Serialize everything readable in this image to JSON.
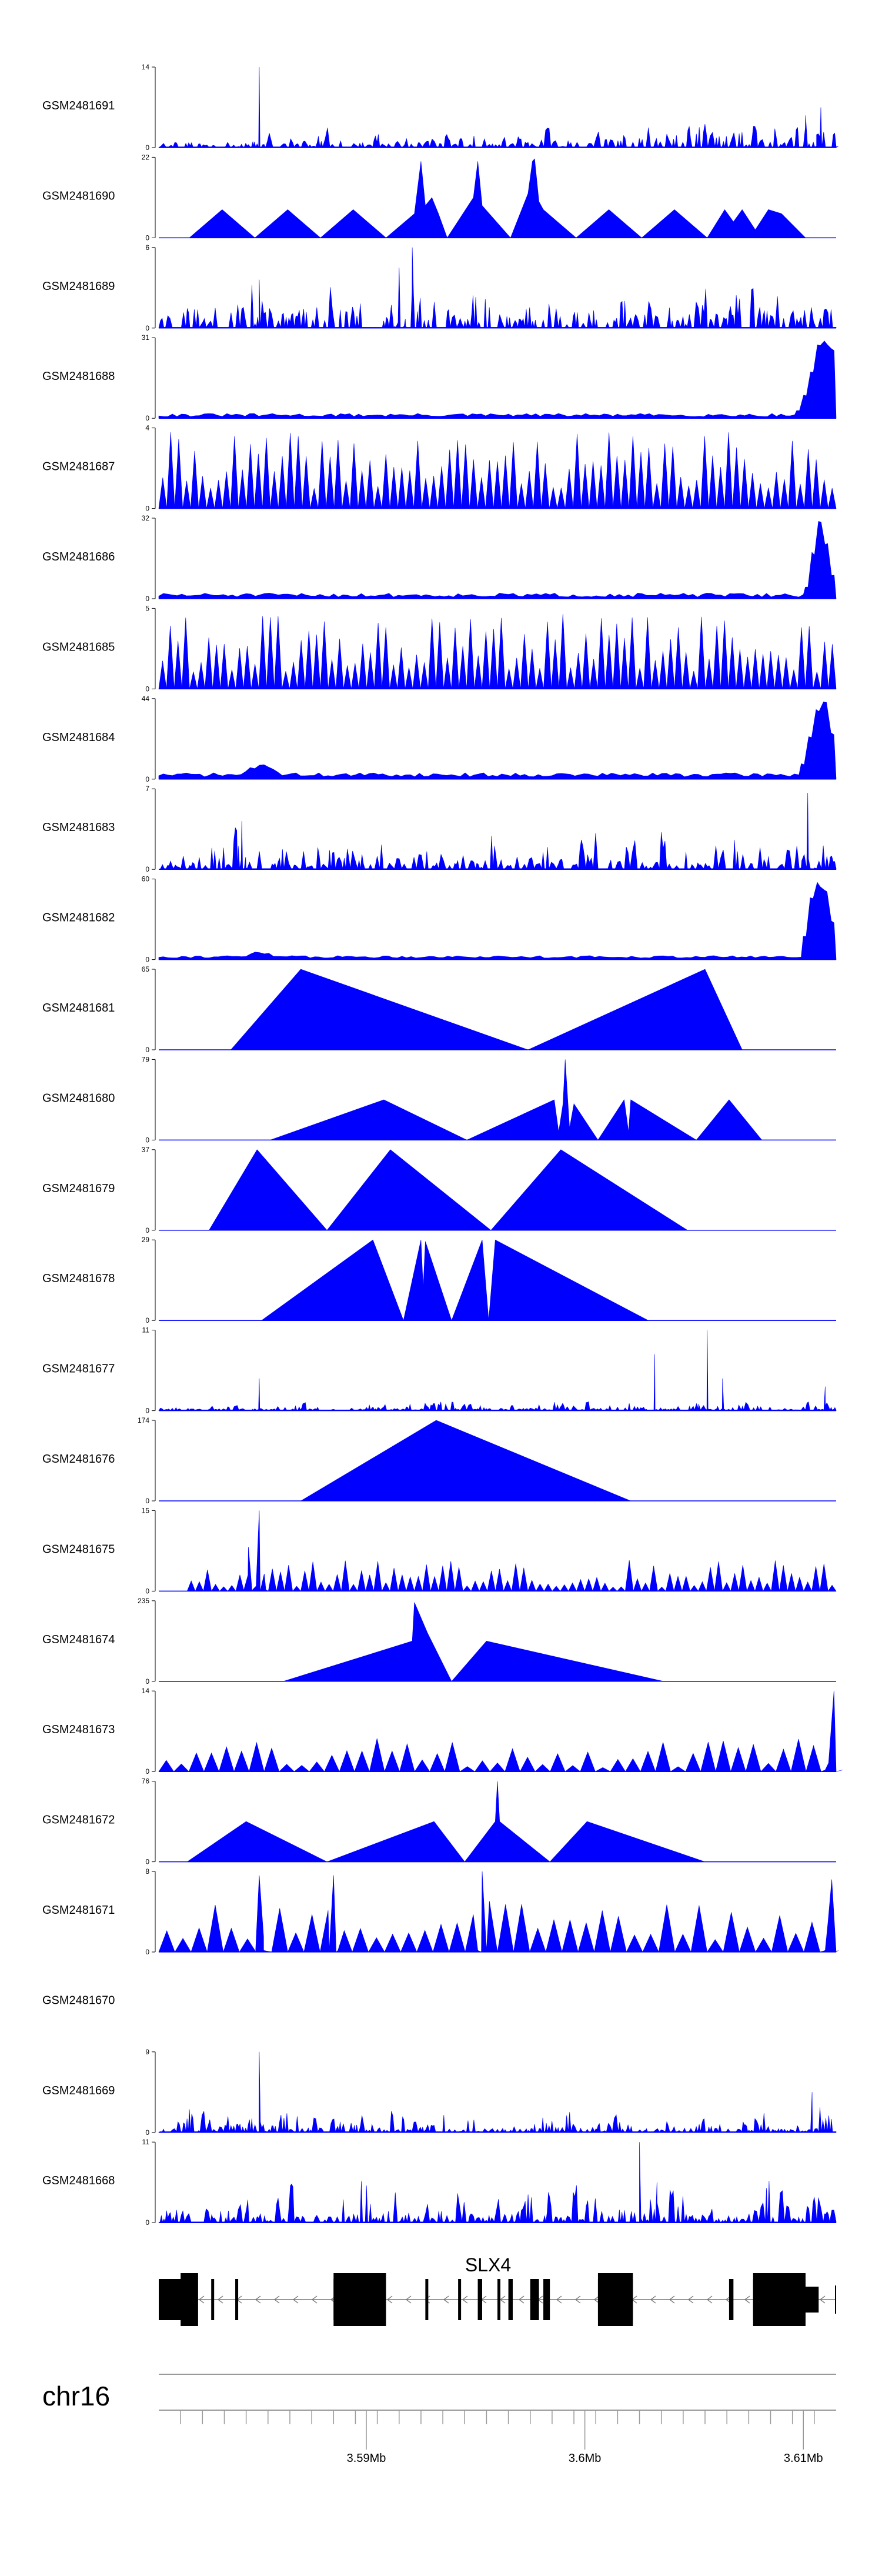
{
  "chart_data": {
    "type": "area",
    "color": "#0000ff",
    "x_range": [
      3.5805,
      3.6115
    ],
    "x_unit": "Mb",
    "chromosome": "chr16",
    "gene": {
      "name": "SLX4",
      "start": 3.5805,
      "end": 3.6115,
      "strand": "-",
      "exons": [
        [
          3.5805,
          3.58185
        ],
        [
          3.58185,
          3.5822
        ],
        [
          3.5829,
          3.58302
        ],
        [
          3.584,
          3.5841
        ],
        [
          3.5885,
          3.5909
        ],
        [
          3.5927,
          3.5928
        ],
        [
          3.5942,
          3.5943
        ],
        [
          3.5951,
          3.5953
        ],
        [
          3.596,
          3.5961
        ],
        [
          3.5965,
          3.5967
        ],
        [
          3.5975,
          3.5979
        ],
        [
          3.5981,
          3.5984
        ],
        [
          3.6006,
          3.6012
        ],
        [
          3.6012,
          3.6022
        ],
        [
          3.6066,
          3.6068
        ],
        [
          3.6077,
          3.6101
        ]
      ],
      "thick_exons": [
        [
          3.5815,
          3.5823
        ],
        [
          3.5885,
          3.5909
        ],
        [
          3.6006,
          3.6022
        ],
        [
          3.6077,
          3.6101
        ]
      ]
    },
    "axis": {
      "ticks": [
        3.5815,
        3.5825,
        3.5835,
        3.5845,
        3.5855,
        3.5865,
        3.5875,
        3.5885,
        3.5895,
        3.5905,
        3.5915,
        3.5925,
        3.5935,
        3.5945,
        3.5955,
        3.5965,
        3.5975,
        3.5985,
        3.5995,
        3.6005,
        3.6015,
        3.6025,
        3.6035,
        3.6045,
        3.6055,
        3.6065,
        3.6075,
        3.6085,
        3.6095,
        3.6105
      ],
      "labeled_ticks": [
        {
          "value": 3.59,
          "label": "3.59Mb"
        },
        {
          "value": 3.6,
          "label": "3.6Mb"
        },
        {
          "value": 3.61,
          "label": "3.61Mb"
        }
      ]
    },
    "tracks": [
      {
        "id": "GSM2481691",
        "name": "GSM2481691",
        "ymin": 0,
        "ymax": 14,
        "y_labels": [
          "0",
          "14"
        ],
        "pattern": "dense",
        "n": 95,
        "seed": 11,
        "base": 0.05,
        "amp": 0.22,
        "spikes": [
          [
            3.5851,
            1.0,
            0.00025
          ],
          [
            3.6108,
            0.5,
            0.0008
          ],
          [
            3.6101,
            0.4,
            0.0005
          ]
        ],
        "rise": {
          "start": 3.596,
          "gain": 0.2
        }
      },
      {
        "id": "GSM2481690",
        "name": "GSM2481690",
        "ymin": 0,
        "ymax": 22,
        "y_labels": [
          "0",
          "22"
        ],
        "pattern": "triangles",
        "points": [
          [
            3.5819,
            0
          ],
          [
            3.5834,
            0.35
          ],
          [
            3.5849,
            0
          ],
          [
            3.5864,
            0.35
          ],
          [
            3.5879,
            0
          ],
          [
            3.5894,
            0.35
          ],
          [
            3.5909,
            0
          ],
          [
            3.5922,
            0.3
          ],
          [
            3.5925,
            0.95
          ],
          [
            3.5927,
            0.4
          ],
          [
            3.593,
            0.5
          ],
          [
            3.5933,
            0.3
          ],
          [
            3.5937,
            0
          ],
          [
            3.5949,
            0.5
          ],
          [
            3.5951,
            0.95
          ],
          [
            3.5953,
            0.4
          ],
          [
            3.5966,
            0
          ],
          [
            3.5974,
            0.55
          ],
          [
            3.5976,
            0.95
          ],
          [
            3.5977,
            0.98
          ],
          [
            3.5979,
            0.45
          ],
          [
            3.5981,
            0.35
          ],
          [
            3.5996,
            0
          ],
          [
            3.6011,
            0.35
          ],
          [
            3.6026,
            0
          ],
          [
            3.6041,
            0.35
          ],
          [
            3.6056,
            0
          ],
          [
            3.6064,
            0.35
          ],
          [
            3.6068,
            0.2
          ],
          [
            3.6072,
            0.35
          ],
          [
            3.6078,
            0.1
          ],
          [
            3.6084,
            0.35
          ],
          [
            3.609,
            0.3
          ],
          [
            3.6101,
            0
          ]
        ]
      },
      {
        "id": "GSM2481689",
        "name": "GSM2481689",
        "ymin": 0,
        "ymax": 6,
        "y_labels": [
          "0",
          "6"
        ],
        "pattern": "dense",
        "n": 100,
        "seed": 23,
        "base": 0.12,
        "amp": 0.45,
        "spikes": [
          [
            3.5921,
            1.0,
            0.0003
          ],
          [
            3.5915,
            0.75,
            0.0002
          ],
          [
            3.5851,
            0.6,
            0.0004
          ]
        ],
        "rise": null
      },
      {
        "id": "GSM2481688",
        "name": "GSM2481688",
        "ymin": 0,
        "ymax": 31,
        "y_labels": [
          "0",
          "31"
        ],
        "pattern": "low_with_peak",
        "seed": 31,
        "base": 0.02,
        "amp": 0.04,
        "peak": {
          "start": 3.6096,
          "end": 3.6115,
          "heights": [
            0.1,
            0.3,
            0.6,
            0.95,
            1.0,
            0.9
          ]
        }
      },
      {
        "id": "GSM2481687",
        "name": "GSM2481687",
        "ymin": 0,
        "ymax": 4,
        "y_labels": [
          "0",
          "4"
        ],
        "pattern": "spiky",
        "n": 85,
        "seed": 41,
        "base": 0.25,
        "amp": 0.7
      },
      {
        "id": "GSM2481686",
        "name": "GSM2481686",
        "ymin": 0,
        "ymax": 32,
        "y_labels": [
          "0",
          "32"
        ],
        "pattern": "low_with_peak",
        "seed": 51,
        "base": 0.02,
        "amp": 0.05,
        "peak": {
          "start": 3.61,
          "end": 3.6115,
          "heights": [
            0.15,
            0.6,
            1.0,
            0.7,
            0.3
          ]
        }
      },
      {
        "id": "GSM2481685",
        "name": "GSM2481685",
        "ymin": 0,
        "ymax": 5,
        "y_labels": [
          "0",
          "5"
        ],
        "pattern": "spiky",
        "n": 88,
        "seed": 61,
        "base": 0.2,
        "amp": 0.75
      },
      {
        "id": "GSM2481684",
        "name": "GSM2481684",
        "ymin": 0,
        "ymax": 44,
        "y_labels": [
          "0",
          "44"
        ],
        "pattern": "low_with_peak",
        "seed": 71,
        "base": 0.03,
        "amp": 0.05,
        "bump": {
          "start": 3.5843,
          "end": 3.5862,
          "height": 0.15
        },
        "peak": {
          "start": 3.6098,
          "end": 3.6115,
          "heights": [
            0.2,
            0.55,
            0.9,
            1.0,
            0.6
          ]
        }
      },
      {
        "id": "GSM2481683",
        "name": "GSM2481683",
        "ymin": 0,
        "ymax": 7,
        "y_labels": [
          "0",
          "7"
        ],
        "pattern": "dense",
        "n": 92,
        "seed": 81,
        "base": 0.08,
        "amp": 0.5,
        "spikes": [
          [
            3.6102,
            0.95,
            0.0003
          ],
          [
            3.5843,
            0.6,
            0.0002
          ]
        ],
        "rise": null
      },
      {
        "id": "GSM2481682",
        "name": "GSM2481682",
        "ymin": 0,
        "ymax": 60,
        "y_labels": [
          "0",
          "60"
        ],
        "pattern": "low_with_peak",
        "seed": 91,
        "base": 0.02,
        "amp": 0.03,
        "bump": {
          "start": 3.5844,
          "end": 3.586,
          "height": 0.07
        },
        "peak": {
          "start": 3.6099,
          "end": 3.6115,
          "heights": [
            0.3,
            0.8,
            1.0,
            0.9,
            0.5
          ]
        }
      },
      {
        "id": "GSM2481681",
        "name": "GSM2481681",
        "ymin": 0,
        "ymax": 65,
        "y_labels": [
          "0",
          "65"
        ],
        "pattern": "triangles",
        "points": [
          [
            3.5838,
            0
          ],
          [
            3.587,
            1.0
          ],
          [
            3.5974,
            0
          ],
          [
            3.6055,
            1.0
          ],
          [
            3.6072,
            0
          ]
        ]
      },
      {
        "id": "GSM2481680",
        "name": "GSM2481680",
        "ymin": 0,
        "ymax": 79,
        "y_labels": [
          "0",
          "79"
        ],
        "pattern": "triangles",
        "points": [
          [
            3.5856,
            0
          ],
          [
            3.5908,
            0.5
          ],
          [
            3.5946,
            0
          ],
          [
            3.5986,
            0.5
          ],
          [
            3.5988,
            0.1
          ],
          [
            3.599,
            0.45
          ],
          [
            3.5991,
            1.0
          ],
          [
            3.5993,
            0.15
          ],
          [
            3.5995,
            0.45
          ],
          [
            3.6006,
            0
          ],
          [
            3.6018,
            0.5
          ],
          [
            3.602,
            0.1
          ],
          [
            3.6021,
            0.5
          ],
          [
            3.6051,
            0
          ],
          [
            3.6066,
            0.5
          ],
          [
            3.6081,
            0
          ]
        ]
      },
      {
        "id": "GSM2481679",
        "name": "GSM2481679",
        "ymin": 0,
        "ymax": 37,
        "y_labels": [
          "0",
          "37"
        ],
        "pattern": "triangles",
        "points": [
          [
            3.5828,
            0
          ],
          [
            3.585,
            1.0
          ],
          [
            3.5882,
            0
          ],
          [
            3.5911,
            1.0
          ],
          [
            3.5957,
            0
          ],
          [
            3.5989,
            1.0
          ],
          [
            3.6047,
            0
          ]
        ]
      },
      {
        "id": "GSM2481678",
        "name": "GSM2481678",
        "ymin": 0,
        "ymax": 29,
        "y_labels": [
          "0",
          "29"
        ],
        "pattern": "triangles",
        "points": [
          [
            3.5852,
            0
          ],
          [
            3.5903,
            1.0
          ],
          [
            3.5917,
            0
          ],
          [
            3.5925,
            1.0
          ],
          [
            3.5926,
            0.4
          ],
          [
            3.5927,
            0.98
          ],
          [
            3.5939,
            0
          ],
          [
            3.5953,
            1.0
          ],
          [
            3.5956,
            0
          ],
          [
            3.5959,
            1.0
          ],
          [
            3.6029,
            0
          ]
        ]
      },
      {
        "id": "GSM2481677",
        "name": "GSM2481677",
        "ymin": 0,
        "ymax": 11,
        "y_labels": [
          "0",
          "11"
        ],
        "pattern": "dense",
        "n": 110,
        "seed": 111,
        "base": 0.03,
        "amp": 0.12,
        "spikes": [
          [
            3.6056,
            1.0,
            0.0004
          ],
          [
            3.6032,
            0.7,
            0.0004
          ],
          [
            3.6063,
            0.4,
            0.0003
          ],
          [
            3.5851,
            0.4,
            0.0003
          ],
          [
            3.611,
            0.3,
            0.0003
          ]
        ],
        "rise": null
      },
      {
        "id": "GSM2481676",
        "name": "GSM2481676",
        "ymin": 0,
        "ymax": 174,
        "y_labels": [
          "0",
          "174"
        ],
        "pattern": "triangles",
        "points": [
          [
            3.587,
            0
          ],
          [
            3.5932,
            1.0
          ],
          [
            3.6021,
            0
          ]
        ]
      },
      {
        "id": "GSM2481675",
        "name": "GSM2481675",
        "ymin": 0,
        "ymax": 15,
        "y_labels": [
          "0",
          "15"
        ],
        "pattern": "spiky",
        "n": 80,
        "seed": 121,
        "base": 0.05,
        "amp": 0.35,
        "start": 3.5818,
        "spikes": [
          [
            3.5851,
            1.0,
            0.0003
          ],
          [
            3.5846,
            0.55,
            0.0002
          ]
        ]
      },
      {
        "id": "GSM2481674",
        "name": "GSM2481674",
        "ymin": 0,
        "ymax": 235,
        "y_labels": [
          "0",
          "235"
        ],
        "pattern": "triangles",
        "points": [
          [
            3.5862,
            0
          ],
          [
            3.5921,
            0.5
          ],
          [
            3.5922,
            0.98
          ],
          [
            3.5928,
            0.6
          ],
          [
            3.5939,
            0
          ],
          [
            3.5955,
            0.5
          ],
          [
            3.6036,
            0
          ]
        ]
      },
      {
        "id": "GSM2481673",
        "name": "GSM2481673",
        "ymin": 0,
        "ymax": 14,
        "y_labels": [
          "0",
          "14"
        ],
        "pattern": "spiky",
        "n": 45,
        "seed": 131,
        "base": 0.05,
        "amp": 0.4,
        "spikes": [
          [
            3.6114,
            1.0,
            0.0004
          ]
        ]
      },
      {
        "id": "GSM2481672",
        "name": "GSM2481672",
        "ymin": 0,
        "ymax": 76,
        "y_labels": [
          "0",
          "76"
        ],
        "pattern": "triangles",
        "points": [
          [
            3.5818,
            0
          ],
          [
            3.5845,
            0.5
          ],
          [
            3.5882,
            0
          ],
          [
            3.5931,
            0.5
          ],
          [
            3.5945,
            0
          ],
          [
            3.5959,
            0.5
          ],
          [
            3.596,
            1.0
          ],
          [
            3.5961,
            0.5
          ],
          [
            3.5984,
            0
          ],
          [
            3.6001,
            0.5
          ],
          [
            3.6055,
            0
          ]
        ]
      },
      {
        "id": "GSM2481671",
        "name": "GSM2481671",
        "ymin": 0,
        "ymax": 8,
        "y_labels": [
          "0",
          "8"
        ],
        "pattern": "spiky",
        "n": 42,
        "seed": 141,
        "base": 0.15,
        "amp": 0.5,
        "spikes": [
          [
            3.5851,
            0.95,
            0.0002
          ],
          [
            3.5885,
            0.95,
            0.0002
          ],
          [
            3.5953,
            1.0,
            0.0002
          ],
          [
            3.6113,
            0.9,
            0.0003
          ]
        ]
      },
      {
        "id": "GSM2481670",
        "name": "GSM2481670",
        "ymin": null,
        "ymax": null,
        "y_labels": [],
        "pattern": "empty"
      },
      {
        "id": "GSM2481669",
        "name": "GSM2481669",
        "ymin": 0,
        "ymax": 9,
        "y_labels": [
          "0",
          "9"
        ],
        "pattern": "dense",
        "n": 115,
        "seed": 151,
        "base": 0.05,
        "amp": 0.28,
        "spikes": [
          [
            3.5851,
            1.0,
            0.0003
          ],
          [
            3.6104,
            0.5,
            0.0003
          ]
        ],
        "rise": null
      },
      {
        "id": "GSM2481668",
        "name": "GSM2481668",
        "ymin": 0,
        "ymax": 11,
        "y_labels": [
          "0",
          "11"
        ],
        "pattern": "dense",
        "n": 105,
        "seed": 161,
        "base": 0.08,
        "amp": 0.5,
        "spikes": [
          [
            3.6025,
            1.0,
            0.0003
          ],
          [
            3.6033,
            0.5,
            0.0002
          ]
        ],
        "rise": null
      }
    ]
  }
}
